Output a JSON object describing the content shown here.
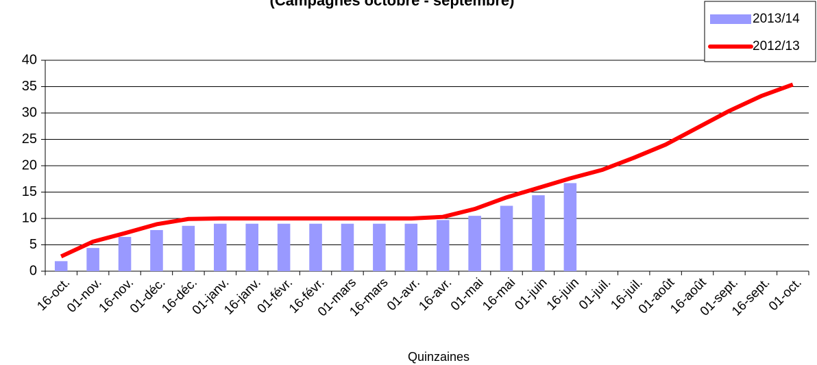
{
  "chart_data": {
    "type": "bar_line",
    "subtitle": "(Campagnes octobre - septembre)",
    "x_label": "Quinzaines",
    "categories": [
      "16-oct.",
      "01-nov.",
      "16-nov.",
      "01-déc.",
      "16-déc.",
      "01-janv.",
      "16-janv.",
      "01-févr.",
      "16-févr.",
      "01-mars",
      "16-mars",
      "01-avr.",
      "16-avr.",
      "01-mai",
      "16-mai",
      "01-juin",
      "16-juin",
      "01-juil.",
      "16-juil.",
      "01-août",
      "16-août",
      "01-sept.",
      "16-sept.",
      "01-oct."
    ],
    "series": [
      {
        "name": "2013/14",
        "type": "bar",
        "color": "#9999ff",
        "values": [
          1.9,
          4.4,
          6.5,
          7.8,
          8.6,
          9,
          9,
          9,
          9,
          9,
          9,
          9,
          9.7,
          10.5,
          12.4,
          14.4,
          16.7,
          null,
          null,
          null,
          null,
          null,
          null,
          null
        ]
      },
      {
        "name": "2012/13",
        "type": "line",
        "color": "#ff0000",
        "values": [
          2.8,
          5.6,
          7.2,
          8.9,
          9.9,
          10,
          10,
          10,
          10,
          10,
          10,
          10,
          10.3,
          11.8,
          14,
          15.8,
          17.6,
          19.2,
          21.5,
          24,
          27.2,
          30.4,
          33.2,
          35.4
        ]
      }
    ],
    "ylim": [
      0,
      40
    ],
    "yticks": [
      0,
      5,
      10,
      15,
      20,
      25,
      30,
      35,
      40
    ],
    "grid": true,
    "legend": "top-right"
  }
}
